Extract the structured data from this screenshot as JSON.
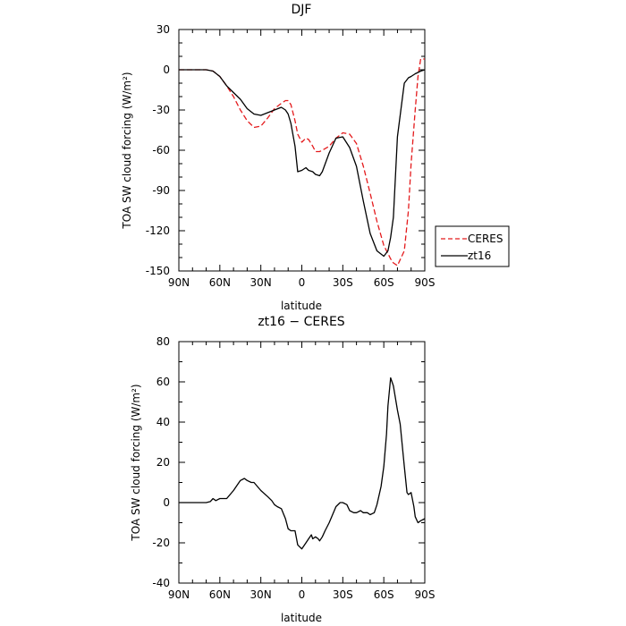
{
  "chart_data": [
    {
      "type": "line",
      "title": "DJF",
      "xlabel": "latitude",
      "ylabel": "TOA SW cloud forcing (W/m²)",
      "xlim": [
        90,
        -90
      ],
      "ylim": [
        -150,
        30
      ],
      "xticks": [
        90,
        60,
        30,
        0,
        -30,
        -60,
        -90
      ],
      "xticklabels": [
        "90N",
        "60N",
        "30N",
        "0",
        "30S",
        "60S",
        "90S"
      ],
      "yticks": [
        30,
        0,
        -30,
        -60,
        -90,
        -120,
        -150
      ],
      "yticklabels": [
        "30",
        "0",
        "-30",
        "-60",
        "-90",
        "-120",
        "-150"
      ],
      "legend_position": "right, outside the plot",
      "series": [
        {
          "name": "CERES",
          "color": "#e41a1c",
          "dash": "dashed",
          "x": [
            90,
            80,
            70,
            65,
            60,
            55,
            50,
            45,
            40,
            35,
            30,
            25,
            20,
            15,
            12,
            10,
            8,
            5,
            3,
            0,
            -3,
            -5,
            -8,
            -10,
            -13,
            -15,
            -20,
            -25,
            -30,
            -35,
            -40,
            -45,
            -50,
            -55,
            -60,
            -63,
            -65,
            -67,
            -70,
            -75,
            -78,
            -80,
            -83,
            -85,
            -87,
            -90
          ],
          "y": [
            0,
            0,
            0,
            -1,
            -5,
            -12,
            -20,
            -30,
            -38,
            -43,
            -42,
            -36,
            -29,
            -25,
            -23,
            -23,
            -26,
            -38,
            -48,
            -54,
            -51,
            -52,
            -57,
            -61,
            -61,
            -60,
            -57,
            -51,
            -47,
            -48,
            -55,
            -72,
            -92,
            -113,
            -131,
            -137,
            -141,
            -144,
            -146,
            -135,
            -105,
            -70,
            -30,
            -5,
            8,
            8
          ]
        },
        {
          "name": "zt16",
          "color": "#000000",
          "dash": "solid",
          "x": [
            90,
            80,
            70,
            65,
            60,
            55,
            50,
            45,
            40,
            35,
            30,
            25,
            20,
            15,
            12,
            10,
            8,
            5,
            3,
            0,
            -3,
            -5,
            -8,
            -10,
            -13,
            -15,
            -20,
            -25,
            -30,
            -35,
            -40,
            -45,
            -50,
            -55,
            -60,
            -63,
            -65,
            -67,
            -70,
            -75,
            -78,
            -80,
            -83,
            -85,
            -87,
            -90
          ],
          "y": [
            0,
            0,
            0,
            -1,
            -5,
            -12,
            -17,
            -22,
            -29,
            -33,
            -34,
            -32,
            -30,
            -28,
            -30,
            -33,
            -40,
            -57,
            -76,
            -75,
            -73,
            -75,
            -76,
            -78,
            -79,
            -76,
            -62,
            -51,
            -50,
            -58,
            -72,
            -98,
            -122,
            -135,
            -139,
            -135,
            -125,
            -110,
            -50,
            -10,
            -6,
            -5,
            -3,
            -2,
            -1,
            0
          ]
        }
      ]
    },
    {
      "type": "line",
      "title": "zt16 − CERES",
      "xlabel": "latitude",
      "ylabel": "TOA SW cloud forcing (W/m²)",
      "xlim": [
        90,
        -90
      ],
      "ylim": [
        -40,
        80
      ],
      "xticks": [
        90,
        60,
        30,
        0,
        -30,
        -60,
        -90
      ],
      "xticklabels": [
        "90N",
        "60N",
        "30N",
        "0",
        "30S",
        "60S",
        "90S"
      ],
      "yticks": [
        80,
        60,
        40,
        20,
        0,
        -20,
        -40
      ],
      "yticklabels": [
        "80",
        "60",
        "40",
        "20",
        "0",
        "-20",
        "-40"
      ],
      "series": [
        {
          "color": "#000000",
          "dash": "solid",
          "x": [
            90,
            80,
            70,
            67,
            65,
            63,
            60,
            55,
            50,
            47,
            45,
            42,
            40,
            37,
            35,
            30,
            25,
            22,
            20,
            18,
            15,
            12,
            10,
            8,
            5,
            3,
            0,
            -3,
            -5,
            -7,
            -8,
            -10,
            -12,
            -13,
            -15,
            -17,
            -20,
            -25,
            -28,
            -30,
            -33,
            -35,
            -38,
            -40,
            -43,
            -45,
            -48,
            -50,
            -53,
            -55,
            -58,
            -60,
            -62,
            -63,
            -65,
            -67,
            -70,
            -72,
            -75,
            -77,
            -78,
            -80,
            -82,
            -83,
            -85,
            -87,
            -90
          ],
          "y": [
            0,
            0,
            0,
            0.5,
            2,
            1,
            2,
            2,
            6,
            9,
            11,
            12,
            11,
            10,
            10,
            6,
            3,
            1,
            -1,
            -2,
            -3,
            -8,
            -13,
            -14,
            -14,
            -21,
            -23,
            -20,
            -18,
            -16,
            -18,
            -17,
            -18,
            -19,
            -17,
            -14,
            -10,
            -2,
            0,
            0,
            -1,
            -4,
            -5,
            -5,
            -4,
            -5,
            -5,
            -6,
            -5,
            -1,
            8,
            18,
            34,
            48,
            62,
            58,
            46,
            39,
            18,
            5,
            4,
            5,
            -2,
            -7,
            -10,
            -9,
            -8
          ]
        }
      ]
    }
  ]
}
